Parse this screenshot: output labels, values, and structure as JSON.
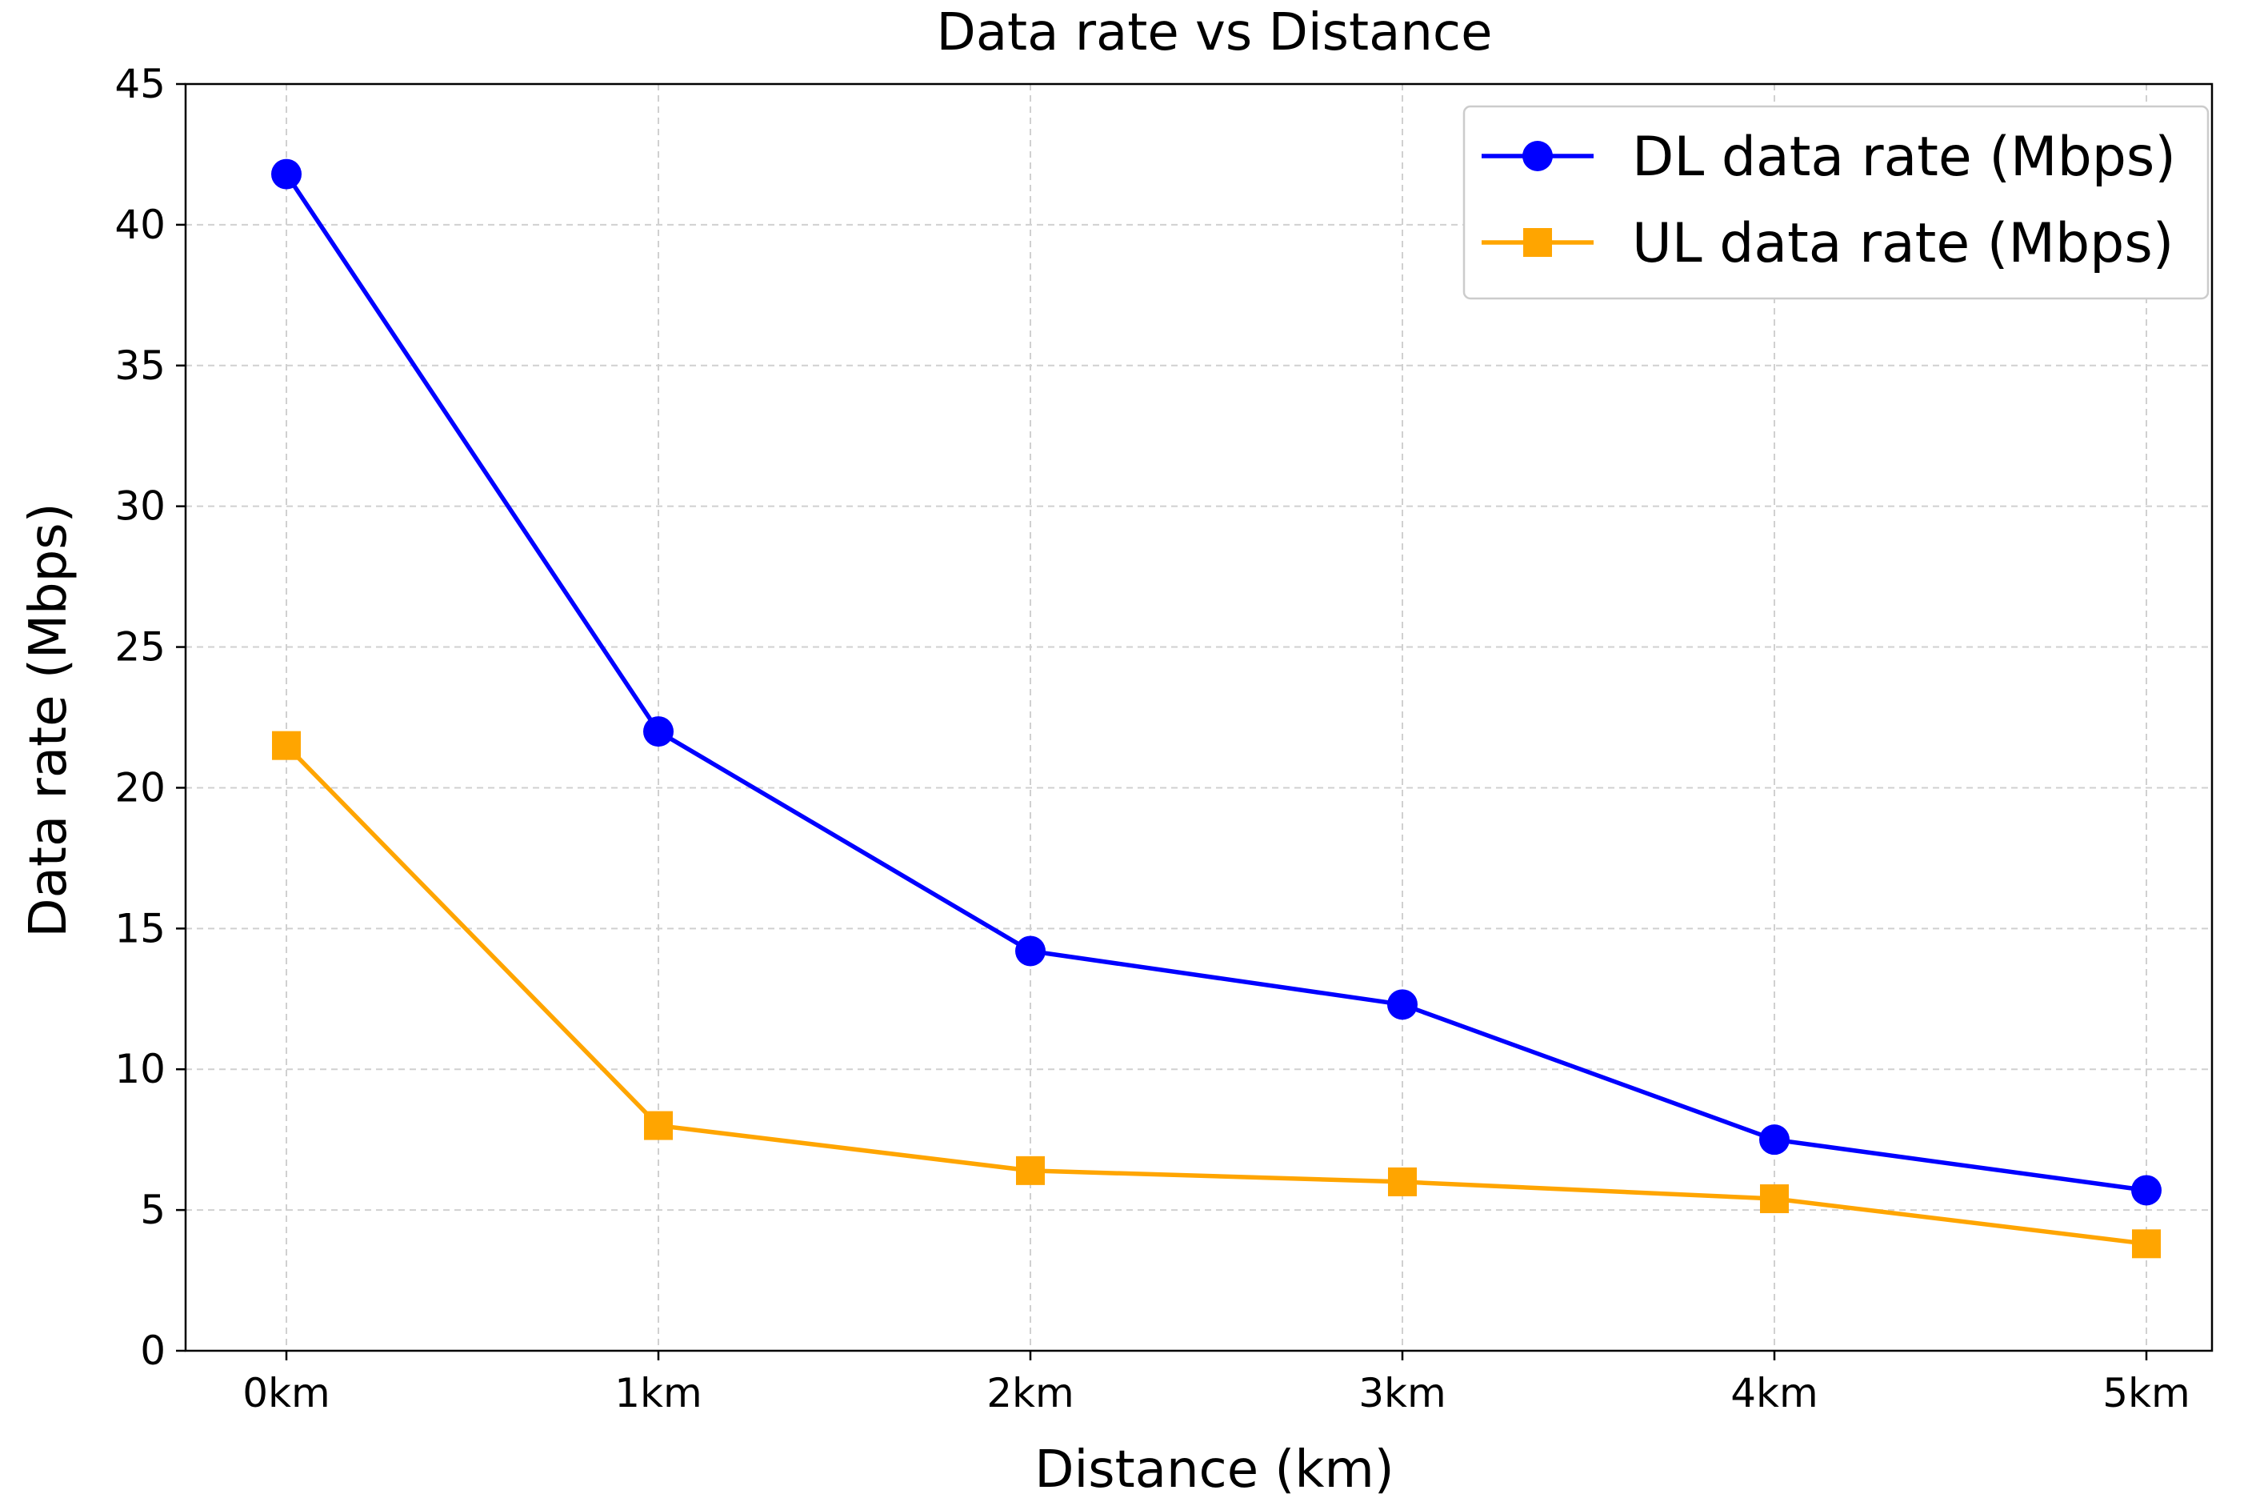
{
  "chart_data": {
    "type": "line",
    "title": "Data rate vs Distance",
    "xlabel": "Distance (km)",
    "ylabel": "Data rate (Mbps)",
    "categories": [
      "0km",
      "1km",
      "2km",
      "3km",
      "4km",
      "5km"
    ],
    "ylim": [
      0,
      45
    ],
    "yticks": [
      0,
      5,
      10,
      15,
      20,
      25,
      30,
      35,
      40,
      45
    ],
    "grid": true,
    "legend_position": "top-right",
    "series": [
      {
        "name": "DL data rate (Mbps)",
        "marker": "circle",
        "color": "#0000ff",
        "values": [
          41.8,
          22.0,
          14.2,
          12.3,
          7.5,
          5.7
        ]
      },
      {
        "name": "UL data rate (Mbps)",
        "marker": "square",
        "color": "#ffa500",
        "values": [
          21.5,
          8.0,
          6.4,
          6.0,
          5.4,
          3.8
        ]
      }
    ]
  }
}
